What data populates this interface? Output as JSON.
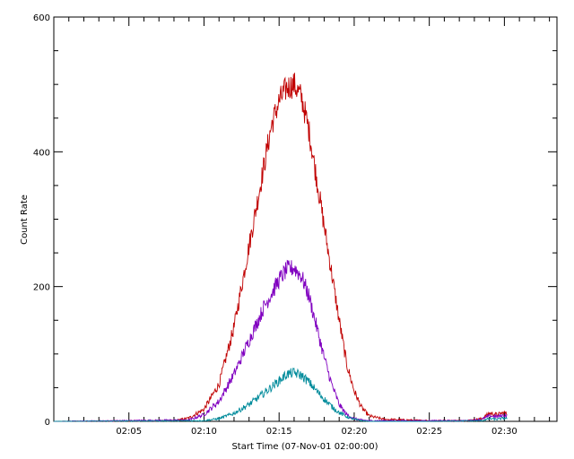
{
  "chart_data": {
    "type": "line",
    "title": "",
    "xlabel": "Start Time (07-Nov-01 02:00:00)",
    "ylabel": "Count Rate",
    "x_unit": "minutes after 02:00:00",
    "xlim": [
      0,
      33.5
    ],
    "ylim": [
      0,
      600
    ],
    "x_ticks": [
      {
        "value": 5,
        "label": "02:05"
      },
      {
        "value": 10,
        "label": "02:10"
      },
      {
        "value": 15,
        "label": "02:15"
      },
      {
        "value": 20,
        "label": "02:20"
      },
      {
        "value": 25,
        "label": "02:25"
      },
      {
        "value": 30,
        "label": "02:30"
      }
    ],
    "y_ticks": [
      {
        "value": 0,
        "label": "0"
      },
      {
        "value": 200,
        "label": "200"
      },
      {
        "value": 400,
        "label": "400"
      },
      {
        "value": 600,
        "label": "600"
      }
    ],
    "grid": false,
    "series": [
      {
        "color": "#c00000",
        "x": [
          0.0,
          8.0,
          9.0,
          10.0,
          11.0,
          12.0,
          12.5,
          13.0,
          13.5,
          14.0,
          14.5,
          15.0,
          15.5,
          16.0,
          16.5,
          17.0,
          17.5,
          18.0,
          18.5,
          19.0,
          19.5,
          20.0,
          20.5,
          21.0,
          22.0,
          25.0,
          27.5,
          28.5,
          29.0,
          29.5,
          30.0,
          30.2
        ],
        "y": [
          0,
          1,
          5,
          18,
          55,
          140,
          200,
          260,
          320,
          380,
          440,
          475,
          495,
          500,
          480,
          430,
          360,
          290,
          220,
          150,
          85,
          45,
          20,
          8,
          3,
          1,
          1,
          4,
          12,
          10,
          13,
          11
        ]
      },
      {
        "color": "#8000c0",
        "x": [
          0.0,
          9.0,
          10.0,
          11.0,
          12.0,
          13.0,
          14.0,
          15.0,
          15.5,
          16.0,
          16.5,
          17.0,
          17.5,
          18.0,
          18.5,
          19.0,
          19.5,
          20.0,
          20.5,
          21.0,
          25.0,
          27.5,
          28.5,
          29.0,
          29.5,
          30.0,
          30.2
        ],
        "y": [
          0,
          2,
          10,
          30,
          70,
          120,
          170,
          210,
          225,
          228,
          215,
          185,
          140,
          95,
          55,
          25,
          10,
          4,
          2,
          1,
          1,
          1,
          3,
          8,
          7,
          9,
          8
        ]
      },
      {
        "color": "#008b9b",
        "x": [
          0.0,
          10.0,
          11.0,
          12.0,
          13.0,
          14.0,
          15.0,
          15.5,
          16.0,
          16.5,
          17.0,
          17.5,
          18.0,
          18.5,
          19.0,
          19.5,
          20.0,
          20.5,
          21.0,
          25.0,
          28.5,
          29.0,
          29.5,
          30.0,
          30.2
        ],
        "y": [
          0,
          1,
          4,
          12,
          25,
          42,
          60,
          70,
          72,
          68,
          58,
          45,
          33,
          22,
          13,
          7,
          3,
          1,
          0,
          0,
          1,
          4,
          3,
          5,
          4
        ]
      }
    ]
  }
}
